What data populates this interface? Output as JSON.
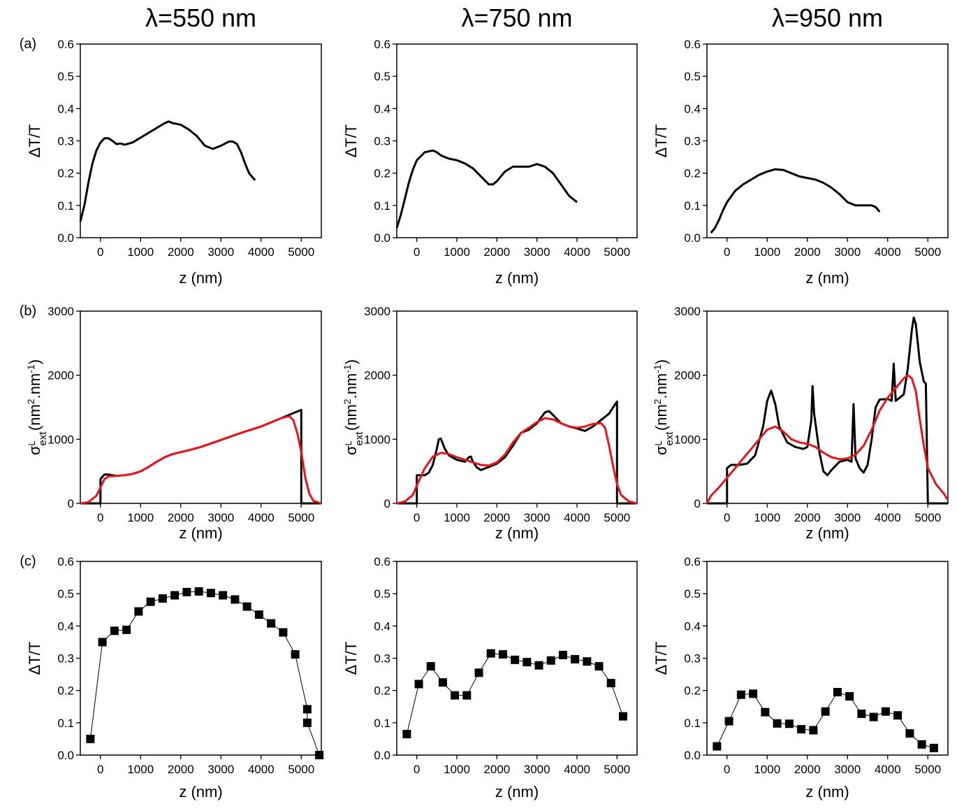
{
  "chart_data": [
    {
      "type": "line",
      "title": "λ=550 nm",
      "panel_label": "(a)",
      "xlabel": "z (nm)",
      "ylabel": "ΔT/T",
      "xlim": [
        -500,
        5500
      ],
      "xticks": [
        0,
        1000,
        2000,
        3000,
        4000,
        5000
      ],
      "ylim": [
        0,
        0.6
      ],
      "yticks": [
        {
          "value": 0,
          "label": "0.0"
        },
        0.1,
        0.2,
        0.3,
        0.4,
        0.5,
        0.6
      ],
      "series": [
        {
          "color": "#000000",
          "x": [
            -500,
            -400,
            -300,
            -200,
            -100,
            0,
            100,
            200,
            300,
            400,
            500,
            600,
            800,
            1000,
            1200,
            1400,
            1600,
            1700,
            1800,
            2000,
            2200,
            2400,
            2600,
            2800,
            3000,
            3200,
            3300,
            3400,
            3500,
            3600,
            3700,
            3850
          ],
          "values": [
            0.05,
            0.1,
            0.17,
            0.23,
            0.27,
            0.295,
            0.308,
            0.308,
            0.3,
            0.29,
            0.292,
            0.288,
            0.295,
            0.31,
            0.325,
            0.34,
            0.355,
            0.36,
            0.355,
            0.35,
            0.335,
            0.315,
            0.285,
            0.275,
            0.285,
            0.298,
            0.298,
            0.29,
            0.265,
            0.23,
            0.2,
            0.178
          ]
        }
      ]
    },
    {
      "type": "line",
      "title": "λ=750 nm",
      "xlabel": "z (nm)",
      "ylabel": "ΔT/T",
      "xlim": [
        -500,
        5500
      ],
      "xticks": [
        0,
        1000,
        2000,
        3000,
        4000,
        5000
      ],
      "ylim": [
        0,
        0.6
      ],
      "yticks": [
        {
          "value": 0,
          "label": "0.0"
        },
        0.1,
        0.2,
        0.3,
        0.4,
        0.5,
        0.6
      ],
      "series": [
        {
          "color": "#000000",
          "x": [
            -500,
            -400,
            -300,
            -200,
            -100,
            0,
            200,
            400,
            500,
            600,
            800,
            1000,
            1200,
            1400,
            1600,
            1800,
            1900,
            2000,
            2200,
            2400,
            2600,
            2800,
            3000,
            3200,
            3400,
            3600,
            3800,
            4000
          ],
          "values": [
            0.03,
            0.07,
            0.12,
            0.17,
            0.21,
            0.24,
            0.265,
            0.27,
            0.265,
            0.255,
            0.245,
            0.24,
            0.23,
            0.215,
            0.19,
            0.165,
            0.165,
            0.175,
            0.205,
            0.22,
            0.22,
            0.22,
            0.228,
            0.22,
            0.2,
            0.165,
            0.13,
            0.11
          ]
        }
      ]
    },
    {
      "type": "line",
      "title": "λ=950 nm",
      "xlabel": "z (nm)",
      "ylabel": "ΔT/T",
      "xlim": [
        -500,
        5500
      ],
      "xticks": [
        0,
        1000,
        2000,
        3000,
        4000,
        5000
      ],
      "ylim": [
        0,
        0.6
      ],
      "yticks": [
        {
          "value": 0,
          "label": "0.0"
        },
        0.1,
        0.2,
        0.3,
        0.4,
        0.5,
        0.6
      ],
      "series": [
        {
          "color": "#000000",
          "x": [
            -400,
            -300,
            -200,
            -100,
            0,
            200,
            400,
            600,
            800,
            1000,
            1200,
            1400,
            1600,
            1800,
            2000,
            2200,
            2400,
            2600,
            2800,
            3000,
            3200,
            3400,
            3600,
            3700,
            3800
          ],
          "values": [
            0.015,
            0.03,
            0.055,
            0.085,
            0.11,
            0.145,
            0.165,
            0.18,
            0.195,
            0.205,
            0.212,
            0.21,
            0.2,
            0.19,
            0.185,
            0.18,
            0.17,
            0.155,
            0.135,
            0.11,
            0.1,
            0.1,
            0.1,
            0.095,
            0.08
          ]
        }
      ]
    },
    {
      "type": "line",
      "panel_label": "(b)",
      "xlabel": "z (nm)",
      "ylabel": [
        "σ",
        "ext",
        "L",
        " (nm",
        "2",
        ".nm",
        "-1",
        ")"
      ],
      "xlim": [
        -500,
        5500
      ],
      "xticks": [
        0,
        1000,
        2000,
        3000,
        4000,
        5000
      ],
      "ylim": [
        0,
        3000
      ],
      "yticks": [
        0,
        1000,
        2000,
        3000
      ],
      "series": [
        {
          "color": "#000000",
          "x": [
            -500,
            0,
            0,
            100,
            200,
            400,
            600,
            800,
            1000,
            1200,
            1400,
            1600,
            1800,
            2000,
            2200,
            2500,
            3000,
            3500,
            4000,
            4500,
            5000,
            5000,
            5500
          ],
          "values": [
            0,
            0,
            380,
            450,
            450,
            430,
            440,
            460,
            500,
            570,
            650,
            720,
            770,
            800,
            830,
            880,
            990,
            1100,
            1200,
            1330,
            1460,
            0,
            0
          ]
        },
        {
          "color": "#e8141c",
          "x": [
            -500,
            -300,
            -100,
            0,
            100,
            200,
            400,
            600,
            800,
            1000,
            1200,
            1400,
            1600,
            1800,
            2000,
            2200,
            2500,
            3000,
            3500,
            4000,
            4500,
            4700,
            4800,
            4900,
            5000,
            5100,
            5200,
            5300,
            5500
          ],
          "values": [
            0,
            20,
            120,
            250,
            380,
            420,
            430,
            440,
            460,
            500,
            570,
            650,
            720,
            770,
            800,
            830,
            880,
            990,
            1100,
            1200,
            1330,
            1360,
            1300,
            1100,
            800,
            400,
            150,
            40,
            0
          ]
        }
      ]
    },
    {
      "type": "line",
      "xlabel": "z (nm)",
      "ylabel": [
        "σ",
        "ext",
        "L",
        " (nm",
        "2",
        ".nm",
        "-1",
        ")"
      ],
      "xlim": [
        -500,
        5500
      ],
      "xticks": [
        0,
        1000,
        2000,
        3000,
        4000,
        5000
      ],
      "ylim": [
        0,
        3000
      ],
      "yticks": [
        0,
        1000,
        2000,
        3000
      ],
      "series": [
        {
          "color": "#000000",
          "x": [
            -500,
            0,
            0,
            200,
            300,
            400,
            500,
            550,
            600,
            700,
            800,
            1000,
            1200,
            1300,
            1350,
            1400,
            1500,
            1600,
            1800,
            2000,
            2200,
            2400,
            2600,
            2800,
            3000,
            3200,
            3300,
            3400,
            3600,
            3800,
            4000,
            4200,
            4400,
            4600,
            4800,
            5000,
            5000,
            5500
          ],
          "values": [
            0,
            0,
            440,
            440,
            480,
            600,
            850,
            1000,
            1010,
            850,
            750,
            680,
            650,
            720,
            730,
            650,
            560,
            520,
            570,
            620,
            720,
            900,
            1100,
            1150,
            1250,
            1420,
            1440,
            1380,
            1250,
            1200,
            1170,
            1130,
            1200,
            1300,
            1400,
            1590,
            0,
            0
          ]
        },
        {
          "color": "#e8141c",
          "x": [
            -500,
            -300,
            -100,
            0,
            200,
            400,
            600,
            800,
            1000,
            1200,
            1400,
            1600,
            1800,
            2000,
            2200,
            2400,
            2600,
            2800,
            3000,
            3200,
            3400,
            3600,
            3800,
            4000,
            4200,
            4400,
            4600,
            4700,
            4800,
            4900,
            5000,
            5100,
            5300,
            5500
          ],
          "values": [
            0,
            30,
            130,
            280,
            550,
            730,
            790,
            770,
            720,
            680,
            640,
            600,
            590,
            640,
            760,
            950,
            1100,
            1180,
            1270,
            1330,
            1310,
            1250,
            1200,
            1180,
            1200,
            1240,
            1250,
            1180,
            900,
            580,
            300,
            130,
            30,
            0
          ]
        }
      ]
    },
    {
      "type": "line",
      "xlabel": "z (nm)",
      "ylabel": [
        "σ",
        "ext",
        "L",
        " (nm",
        "2",
        ".nm",
        "-1",
        ")"
      ],
      "xlim": [
        -500,
        5500
      ],
      "xticks": [
        0,
        1000,
        2000,
        3000,
        4000,
        5000
      ],
      "ylim": [
        0,
        3000
      ],
      "yticks": [
        0,
        1000,
        2000,
        3000
      ],
      "series": [
        {
          "color": "#000000",
          "x": [
            -500,
            0,
            0,
            100,
            300,
            500,
            700,
            900,
            1000,
            1100,
            1200,
            1300,
            1500,
            1700,
            1900,
            2000,
            2100,
            2130,
            2170,
            2300,
            2400,
            2500,
            2600,
            2800,
            3000,
            3100,
            3150,
            3200,
            3300,
            3400,
            3500,
            3600,
            3700,
            3800,
            4000,
            4100,
            4150,
            4200,
            4400,
            4500,
            4600,
            4650,
            4700,
            4800,
            4900,
            4950,
            5000,
            5500
          ],
          "values": [
            0,
            0,
            550,
            600,
            600,
            620,
            750,
            1200,
            1600,
            1760,
            1550,
            1200,
            950,
            880,
            850,
            880,
            1300,
            1830,
            1400,
            800,
            500,
            440,
            520,
            650,
            680,
            650,
            1550,
            700,
            550,
            480,
            600,
            1000,
            1500,
            1620,
            1630,
            1600,
            2180,
            1600,
            1700,
            2100,
            2700,
            2900,
            2800,
            2200,
            1900,
            1870,
            0,
            0
          ]
        },
        {
          "color": "#e8141c",
          "x": [
            -500,
            -400,
            -200,
            0,
            200,
            400,
            600,
            800,
            1000,
            1200,
            1400,
            1600,
            1800,
            2000,
            2200,
            2400,
            2600,
            2800,
            3000,
            3200,
            3400,
            3600,
            3800,
            4000,
            4200,
            4400,
            4500,
            4600,
            4700,
            4800,
            4900,
            5000,
            5200,
            5400,
            5500
          ],
          "values": [
            0,
            120,
            250,
            400,
            550,
            700,
            850,
            1000,
            1150,
            1200,
            1120,
            1000,
            950,
            930,
            880,
            790,
            720,
            690,
            700,
            760,
            900,
            1150,
            1450,
            1650,
            1800,
            1950,
            2000,
            1950,
            1750,
            1300,
            900,
            550,
            300,
            150,
            50
          ]
        }
      ]
    },
    {
      "type": "line",
      "marker": "square",
      "panel_label": "(c)",
      "xlabel": "z (nm)",
      "ylabel": "ΔT/T",
      "xlim": [
        -500,
        5500
      ],
      "xticks": [
        0,
        1000,
        2000,
        3000,
        4000,
        5000
      ],
      "ylim": [
        0,
        0.6
      ],
      "yticks": [
        {
          "value": 0,
          "label": "0.0"
        },
        0.1,
        0.2,
        0.3,
        0.4,
        0.5,
        0.6
      ],
      "series": [
        {
          "color": "#000000",
          "x": [
            -250,
            50,
            350,
            650,
            950,
            1250,
            1550,
            1850,
            2150,
            2450,
            2750,
            3050,
            3350,
            3650,
            3950,
            4250,
            4550,
            4850,
            5150,
            5150,
            5450
          ],
          "values": [
            0.05,
            0.35,
            0.385,
            0.388,
            0.445,
            0.475,
            0.485,
            0.495,
            0.505,
            0.507,
            0.502,
            0.495,
            0.482,
            0.46,
            0.435,
            0.408,
            0.38,
            0.312,
            0.142,
            0.1,
            0.0
          ]
        }
      ]
    },
    {
      "type": "line",
      "marker": "square",
      "xlabel": "z (nm)",
      "ylabel": "ΔT/T",
      "xlim": [
        -500,
        5500
      ],
      "xticks": [
        0,
        1000,
        2000,
        3000,
        4000,
        5000
      ],
      "ylim": [
        0,
        0.6
      ],
      "yticks": [
        {
          "value": 0,
          "label": "0.0"
        },
        0.1,
        0.2,
        0.3,
        0.4,
        0.5,
        0.6
      ],
      "series": [
        {
          "color": "#000000",
          "x": [
            -250,
            50,
            350,
            650,
            950,
            1250,
            1550,
            1850,
            2150,
            2450,
            2750,
            3050,
            3350,
            3650,
            3950,
            4250,
            4550,
            4850,
            5150
          ],
          "values": [
            0.065,
            0.22,
            0.275,
            0.225,
            0.185,
            0.185,
            0.255,
            0.315,
            0.312,
            0.295,
            0.288,
            0.278,
            0.293,
            0.31,
            0.297,
            0.29,
            0.275,
            0.223,
            0.12
          ]
        }
      ]
    },
    {
      "type": "line",
      "marker": "square",
      "xlabel": "z (nm)",
      "ylabel": "ΔT/T",
      "xlim": [
        -500,
        5500
      ],
      "xticks": [
        0,
        1000,
        2000,
        3000,
        4000,
        5000
      ],
      "ylim": [
        0,
        0.6
      ],
      "yticks": [
        {
          "value": 0,
          "label": "0.0"
        },
        0.1,
        0.2,
        0.3,
        0.4,
        0.5,
        0.6
      ],
      "series": [
        {
          "color": "#000000",
          "x": [
            -250,
            50,
            350,
            650,
            950,
            1250,
            1550,
            1850,
            2150,
            2450,
            2750,
            3050,
            3350,
            3650,
            3950,
            4250,
            4550,
            4850,
            5150
          ],
          "values": [
            0.027,
            0.105,
            0.187,
            0.19,
            0.133,
            0.098,
            0.097,
            0.08,
            0.077,
            0.135,
            0.195,
            0.182,
            0.128,
            0.118,
            0.135,
            0.123,
            0.067,
            0.033,
            0.022
          ]
        }
      ]
    }
  ]
}
